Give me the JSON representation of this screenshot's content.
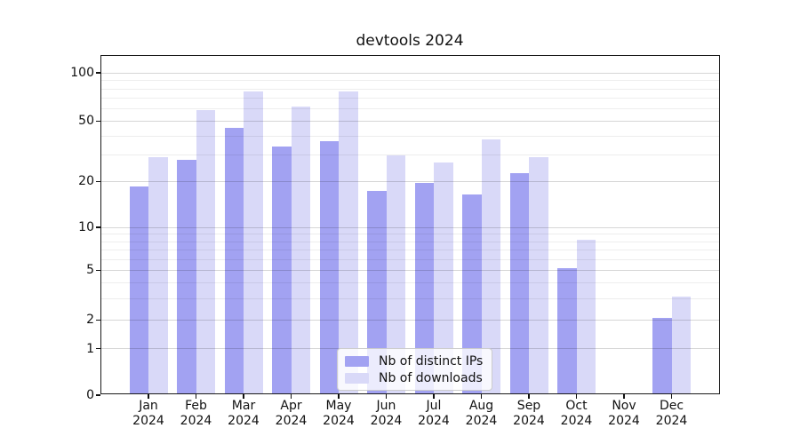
{
  "figure": {
    "background": "#ffffff"
  },
  "chart_data": {
    "type": "bar",
    "title": "devtools 2024",
    "categories": [
      "Jan 2024",
      "Feb 2024",
      "Mar 2024",
      "Apr 2024",
      "May 2024",
      "Jun 2024",
      "Jul 2024",
      "Aug 2024",
      "Sep 2024",
      "Oct 2024",
      "Nov 2024",
      "Dec 2024"
    ],
    "x_tick_months": [
      "Jan",
      "Feb",
      "Mar",
      "Apr",
      "May",
      "Jun",
      "Jul",
      "Aug",
      "Sep",
      "Oct",
      "Nov",
      "Dec"
    ],
    "x_tick_year": "2024",
    "series": [
      {
        "name": "Nb of distinct IPs",
        "color": "#a2a2f2",
        "values": [
          18,
          27,
          44,
          33,
          36,
          17,
          19,
          16,
          22,
          5,
          0,
          2
        ]
      },
      {
        "name": "Nb of downloads",
        "color": "#d9d9f8",
        "values": [
          28,
          57,
          75,
          60,
          75,
          29,
          26,
          37,
          28,
          8,
          0,
          3
        ]
      }
    ],
    "yscale": "symlog",
    "yticks": [
      0,
      1,
      2,
      5,
      10,
      20,
      50,
      100
    ],
    "minor_yticks": [
      3,
      4,
      6,
      7,
      8,
      9,
      30,
      40,
      60,
      70,
      80,
      90
    ],
    "ylim": [
      0,
      130
    ],
    "grid": true,
    "grid_above_bars": true,
    "legend_position": "lower center inside plot",
    "legend_labels": [
      "Nb of distinct IPs",
      "Nb of downloads"
    ]
  }
}
